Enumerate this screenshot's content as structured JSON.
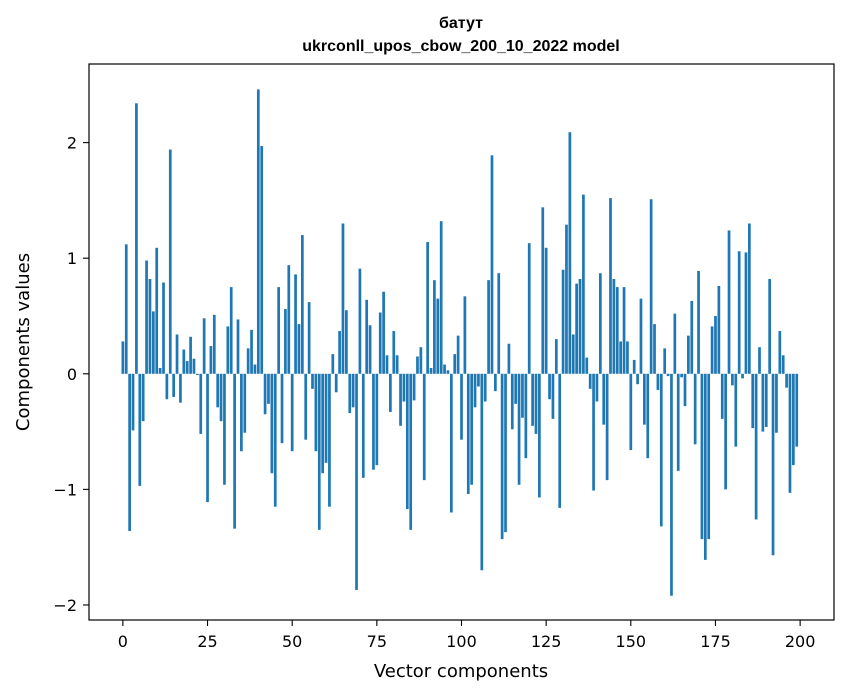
{
  "chart_data": {
    "type": "bar",
    "title": "батут",
    "subtitle": "ukrconll_upos_cbow_200_10_2022 model",
    "xlabel": "Vector components",
    "ylabel": "Components values",
    "xlim": [
      -10,
      210
    ],
    "ylim": [
      -2.13,
      2.68
    ],
    "xticks": [
      0,
      25,
      50,
      75,
      100,
      125,
      150,
      175,
      200
    ],
    "xtick_labels": [
      "0",
      "25",
      "50",
      "75",
      "100",
      "125",
      "150",
      "175",
      "200"
    ],
    "yticks": [
      -2,
      -1,
      0,
      1,
      2
    ],
    "ytick_labels": [
      "−2",
      "−1",
      "0",
      "1",
      "2"
    ],
    "bar_color": "#1f77b4",
    "x": [
      0,
      1,
      2,
      3,
      4,
      5,
      6,
      7,
      8,
      9,
      10,
      11,
      12,
      13,
      14,
      15,
      16,
      17,
      18,
      19,
      20,
      21,
      22,
      23,
      24,
      25,
      26,
      27,
      28,
      29,
      30,
      31,
      32,
      33,
      34,
      35,
      36,
      37,
      38,
      39,
      40,
      41,
      42,
      43,
      44,
      45,
      46,
      47,
      48,
      49,
      50,
      51,
      52,
      53,
      54,
      55,
      56,
      57,
      58,
      59,
      60,
      61,
      62,
      63,
      64,
      65,
      66,
      67,
      68,
      69,
      70,
      71,
      72,
      73,
      74,
      75,
      76,
      77,
      78,
      79,
      80,
      81,
      82,
      83,
      84,
      85,
      86,
      87,
      88,
      89,
      90,
      91,
      92,
      93,
      94,
      95,
      96,
      97,
      98,
      99,
      100,
      101,
      102,
      103,
      104,
      105,
      106,
      107,
      108,
      109,
      110,
      111,
      112,
      113,
      114,
      115,
      116,
      117,
      118,
      119,
      120,
      121,
      122,
      123,
      124,
      125,
      126,
      127,
      128,
      129,
      130,
      131,
      132,
      133,
      134,
      135,
      136,
      137,
      138,
      139,
      140,
      141,
      142,
      143,
      144,
      145,
      146,
      147,
      148,
      149,
      150,
      151,
      152,
      153,
      154,
      155,
      156,
      157,
      158,
      159,
      160,
      161,
      162,
      163,
      164,
      165,
      166,
      167,
      168,
      169,
      170,
      171,
      172,
      173,
      174,
      175,
      176,
      177,
      178,
      179,
      180,
      181,
      182,
      183,
      184,
      185,
      186,
      187,
      188,
      189,
      190,
      191,
      192,
      193,
      194,
      195,
      196,
      197,
      198,
      199
    ],
    "values": [
      0.28,
      1.12,
      -1.36,
      -0.49,
      2.34,
      -0.97,
      -0.41,
      0.98,
      0.82,
      0.54,
      1.09,
      0.05,
      0.79,
      -0.22,
      1.94,
      -0.2,
      0.34,
      -0.25,
      0.21,
      0.11,
      0.32,
      0.13,
      -0.01,
      -0.52,
      0.48,
      -1.11,
      0.24,
      0.51,
      -0.29,
      -0.41,
      -0.96,
      0.41,
      0.75,
      -1.34,
      0.47,
      -0.67,
      -0.51,
      0.22,
      0.38,
      0.08,
      2.46,
      1.97,
      -0.35,
      -0.26,
      -0.86,
      -1.15,
      0.75,
      -0.6,
      0.56,
      0.94,
      -0.67,
      0.86,
      0.43,
      1.2,
      -0.57,
      0.62,
      -0.13,
      -0.67,
      -1.35,
      -0.86,
      -0.77,
      -1.15,
      0.17,
      -0.16,
      0.37,
      1.3,
      0.55,
      -0.34,
      -0.29,
      -1.87,
      0.91,
      -0.9,
      0.64,
      0.42,
      -0.83,
      -0.79,
      0.53,
      0.71,
      0.16,
      -0.33,
      0.37,
      0.16,
      -0.45,
      -0.24,
      -1.17,
      -1.35,
      -0.23,
      0.15,
      0.23,
      -0.92,
      1.14,
      0.05,
      0.81,
      0.65,
      1.32,
      0.08,
      0.03,
      -1.2,
      0.17,
      0.33,
      -0.57,
      0.67,
      -1.04,
      -0.96,
      -0.29,
      -0.11,
      -1.7,
      -0.24,
      0.81,
      1.89,
      -0.15,
      0.87,
      -1.43,
      -1.37,
      0.26,
      -0.48,
      -0.26,
      -0.96,
      -0.38,
      -0.73,
      1.13,
      -0.45,
      -0.52,
      -1.07,
      1.44,
      1.09,
      -0.22,
      -0.39,
      0.3,
      -1.16,
      0.9,
      1.29,
      2.09,
      0.34,
      0.78,
      0.82,
      1.55,
      0.14,
      -0.13,
      -1.01,
      -0.24,
      0.87,
      -0.44,
      -0.92,
      1.52,
      0.82,
      0.75,
      0.28,
      0.75,
      0.28,
      -0.66,
      0.12,
      -0.09,
      0.65,
      -0.44,
      -0.73,
      1.51,
      0.43,
      -0.14,
      -1.32,
      0.22,
      -0.02,
      -1.92,
      0.52,
      -0.84,
      -0.03,
      -0.28,
      0.33,
      0.63,
      -0.61,
      0.89,
      -1.43,
      -1.61,
      -1.43,
      0.41,
      0.5,
      0.76,
      -0.39,
      -1.0,
      1.24,
      -0.1,
      -0.63,
      1.06,
      -0.04,
      1.05,
      1.3,
      -0.47,
      -1.26,
      0.23,
      -0.5,
      -0.46,
      0.82,
      -1.57,
      -0.51,
      0.37,
      0.16,
      -0.12,
      -1.03,
      -0.79,
      -0.63
    ]
  }
}
